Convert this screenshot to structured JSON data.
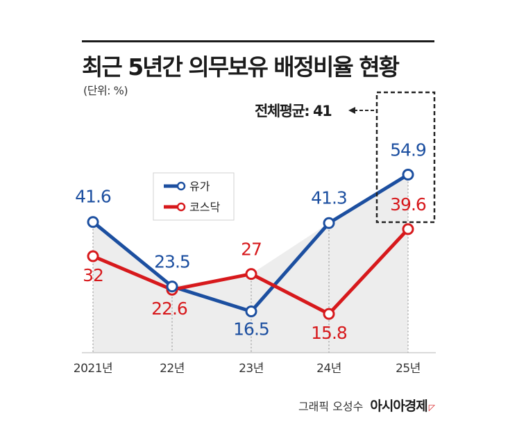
{
  "header": {
    "title": "최근 5년간 의무보유 배정비율 현황",
    "unit": "(단위: %)"
  },
  "average_note": "전체평균: 41",
  "credit": {
    "byline": "그래픽 오성수",
    "publisher": "아시아경제"
  },
  "colors": {
    "blue": "#1c4fa0",
    "red": "#d7191c",
    "area": "#ededed"
  },
  "chart_data": {
    "type": "line",
    "categories": [
      "2021년",
      "22년",
      "23년",
      "24년",
      "25년"
    ],
    "series": [
      {
        "name": "유가",
        "values": [
          41.6,
          23.5,
          16.5,
          41.3,
          54.9
        ],
        "labels": [
          "41.6",
          "23.5",
          "16.5",
          "41.3",
          "54.9"
        ]
      },
      {
        "name": "코스닥",
        "values": [
          32,
          22.6,
          27,
          15.8,
          39.6
        ],
        "labels": [
          "32",
          "22.6",
          "27",
          "15.8",
          "39.6"
        ]
      }
    ],
    "ylim": [
      5,
      60
    ],
    "legend": "upper-middle",
    "grid": false
  }
}
